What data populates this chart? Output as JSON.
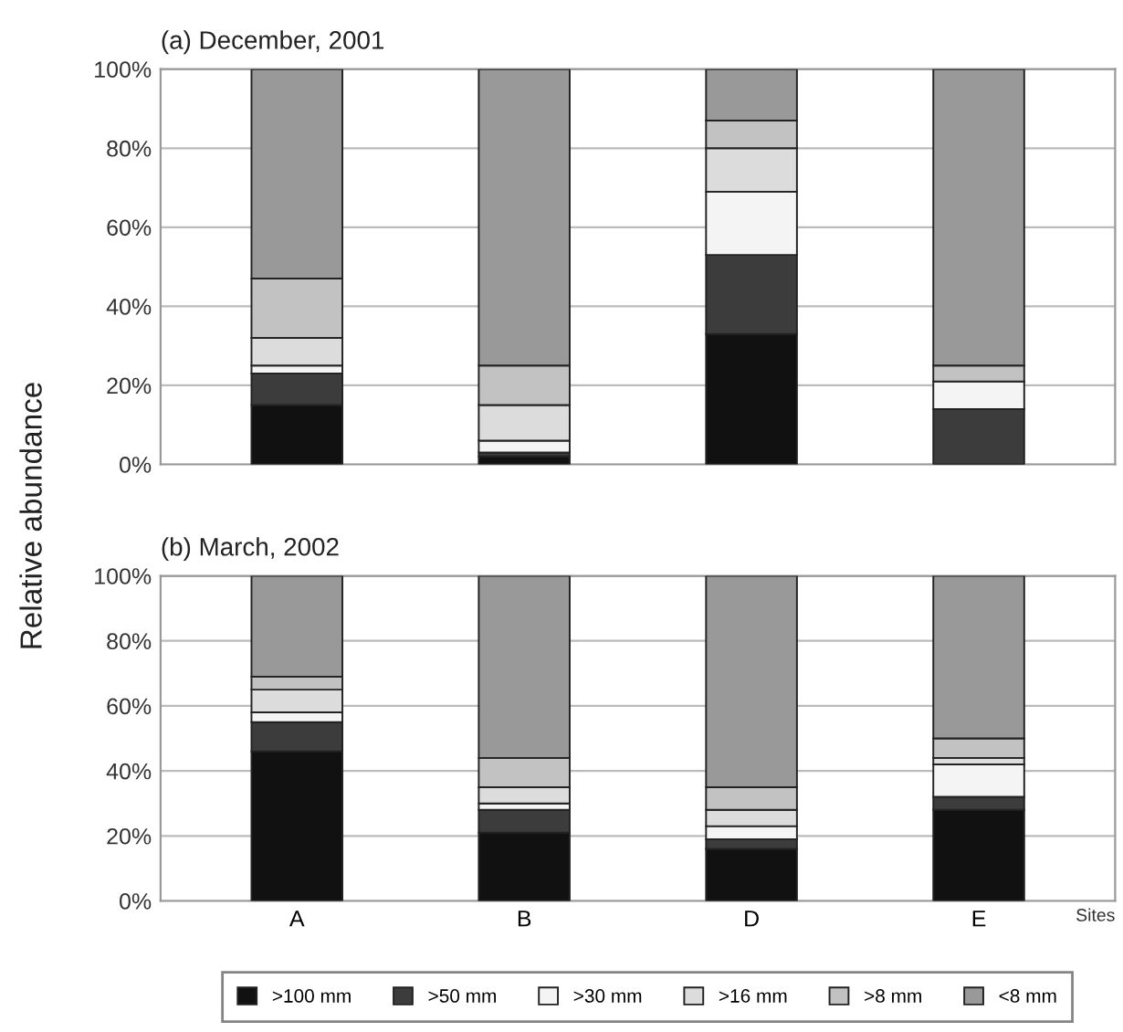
{
  "chart_data": [
    {
      "type": "bar",
      "title": "(a) December, 2001",
      "ylabel": "Relative abundance",
      "stacked": true,
      "grid": "y",
      "legend": false,
      "tick_labels": "y",
      "categories": [
        null,
        null,
        null,
        null
      ],
      "ylim": [
        0,
        100
      ],
      "yticks": [
        {
          "value": 0,
          "label": "0%"
        },
        {
          "value": 20,
          "label": "20%"
        },
        {
          "value": 40,
          "label": "40%"
        },
        {
          "value": 60,
          "label": "60%"
        },
        {
          "value": 80,
          "label": "80%"
        },
        {
          "value": 100,
          "label": "100%"
        }
      ],
      "series": [
        {
          "color": "#111111",
          "values": [
            15,
            2,
            33,
            0
          ]
        },
        {
          "color": "#3c3c3c",
          "values": [
            8,
            1,
            20,
            14
          ]
        },
        {
          "color": "#f4f4f4",
          "values": [
            2,
            3,
            16,
            7
          ]
        },
        {
          "color": "#dcdcdc",
          "values": [
            7,
            9,
            11,
            0
          ]
        },
        {
          "color": "#c2c2c2",
          "values": [
            15,
            10,
            7,
            4
          ]
        },
        {
          "color": "#999999",
          "values": [
            53,
            75,
            13,
            75
          ]
        }
      ]
    },
    {
      "type": "bar",
      "title": "(b) March, 2002",
      "xlabel": "Sites",
      "stacked": true,
      "grid": "y",
      "legend": "bottom",
      "categories": [
        "A",
        "B",
        "D",
        "E"
      ],
      "ylim": [
        0,
        100
      ],
      "yticks": [
        {
          "value": 0,
          "label": "0%"
        },
        {
          "value": 20,
          "label": "20%"
        },
        {
          "value": 40,
          "label": "40%"
        },
        {
          "value": 60,
          "label": "60%"
        },
        {
          "value": 80,
          "label": "80%"
        },
        {
          "value": 100,
          "label": "100%"
        }
      ],
      "series": [
        {
          "name": ">100 mm",
          "color": "#111111",
          "values": [
            46,
            21,
            16,
            28
          ]
        },
        {
          "name": ">50 mm",
          "color": "#3c3c3c",
          "values": [
            9,
            7,
            3,
            4
          ]
        },
        {
          "name": ">30 mm",
          "color": "#f4f4f4",
          "values": [
            3,
            2,
            4,
            10
          ]
        },
        {
          "name": ">16 mm",
          "color": "#dcdcdc",
          "values": [
            7,
            5,
            5,
            2
          ]
        },
        {
          "name": ">8 mm",
          "color": "#c2c2c2",
          "values": [
            4,
            9,
            7,
            6
          ]
        },
        {
          "name": "<8 mm",
          "color": "#999999",
          "values": [
            31,
            56,
            65,
            50
          ]
        }
      ]
    }
  ]
}
